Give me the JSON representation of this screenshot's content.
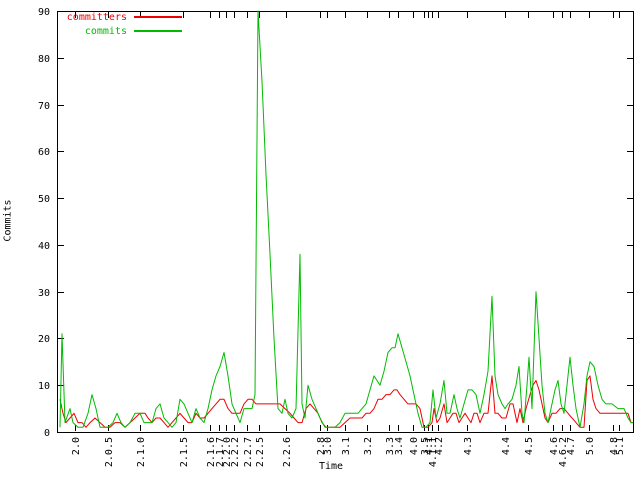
{
  "chart_data": {
    "type": "line",
    "title": "",
    "xlabel": "Time",
    "ylabel": "Commits",
    "ylim": [
      0,
      90
    ],
    "yticks": [
      0,
      10,
      20,
      30,
      40,
      50,
      60,
      70,
      80,
      90
    ],
    "grid": false,
    "x_axis_note": "release versions placed at irregular positions along time axis; x values below are axis pixel positions 57-633",
    "x_ticks": [
      [
        75,
        "2.0"
      ],
      [
        108,
        "2.0.5"
      ],
      [
        140,
        "2.1.0"
      ],
      [
        183,
        "2.1.5"
      ],
      [
        210,
        "2.1.6"
      ],
      [
        219,
        "2.1.7"
      ],
      [
        226,
        "2.2.0"
      ],
      [
        234,
        "2.2.2"
      ],
      [
        247,
        "2.2.7"
      ],
      [
        259,
        "2.2.5"
      ],
      [
        286,
        "2.2.6"
      ],
      [
        320,
        "2.8"
      ],
      [
        327,
        "3.0"
      ],
      [
        345,
        "3.1"
      ],
      [
        367,
        "3.2"
      ],
      [
        389,
        "3.3"
      ],
      [
        398,
        "3.4"
      ],
      [
        413,
        "4.0"
      ],
      [
        424,
        "3.5"
      ],
      [
        428,
        "4.1"
      ],
      [
        432,
        "4.1.1"
      ],
      [
        438,
        "4.2"
      ],
      [
        467,
        "4.3"
      ],
      [
        505,
        "4.4"
      ],
      [
        528,
        "4.5"
      ],
      [
        553,
        "4.6"
      ],
      [
        562,
        "4.6.2"
      ],
      [
        570,
        "4.7"
      ],
      [
        589,
        "5.0"
      ],
      [
        613,
        "4.8"
      ],
      [
        619,
        "5.1"
      ]
    ],
    "legend": {
      "position": "top-left",
      "entries": [
        {
          "label": "committers",
          "color": "#ee0000"
        },
        {
          "label": "commits",
          "color": "#00bb00"
        }
      ]
    },
    "series": [
      {
        "name": "committers",
        "color": "#ee0000",
        "points": [
          [
            60,
            7
          ],
          [
            63,
            4
          ],
          [
            66,
            2
          ],
          [
            70,
            3
          ],
          [
            74,
            4
          ],
          [
            78,
            2
          ],
          [
            82,
            2
          ],
          [
            86,
            1
          ],
          [
            90,
            2
          ],
          [
            95,
            3
          ],
          [
            100,
            2
          ],
          [
            105,
            1
          ],
          [
            110,
            1
          ],
          [
            115,
            2
          ],
          [
            120,
            2
          ],
          [
            125,
            1
          ],
          [
            130,
            2
          ],
          [
            135,
            3
          ],
          [
            140,
            4
          ],
          [
            145,
            4
          ],
          [
            148,
            3
          ],
          [
            152,
            2
          ],
          [
            156,
            3
          ],
          [
            160,
            3
          ],
          [
            164,
            2
          ],
          [
            168,
            1
          ],
          [
            172,
            2
          ],
          [
            176,
            3
          ],
          [
            180,
            4
          ],
          [
            184,
            3
          ],
          [
            188,
            2
          ],
          [
            192,
            2
          ],
          [
            196,
            4
          ],
          [
            200,
            3
          ],
          [
            204,
            3
          ],
          [
            208,
            4
          ],
          [
            212,
            5
          ],
          [
            216,
            6
          ],
          [
            220,
            7
          ],
          [
            224,
            7
          ],
          [
            228,
            5
          ],
          [
            232,
            4
          ],
          [
            236,
            4
          ],
          [
            240,
            4
          ],
          [
            244,
            6
          ],
          [
            248,
            7
          ],
          [
            252,
            7
          ],
          [
            256,
            6
          ],
          [
            260,
            6
          ],
          [
            265,
            6
          ],
          [
            270,
            6
          ],
          [
            275,
            6
          ],
          [
            280,
            6
          ],
          [
            285,
            5
          ],
          [
            290,
            4
          ],
          [
            294,
            3
          ],
          [
            298,
            2
          ],
          [
            302,
            2
          ],
          [
            306,
            5
          ],
          [
            310,
            6
          ],
          [
            314,
            5
          ],
          [
            318,
            4
          ],
          [
            322,
            2
          ],
          [
            326,
            1
          ],
          [
            330,
            1
          ],
          [
            335,
            1
          ],
          [
            340,
            1
          ],
          [
            345,
            2
          ],
          [
            350,
            3
          ],
          [
            355,
            3
          ],
          [
            358,
            3
          ],
          [
            362,
            3
          ],
          [
            366,
            4
          ],
          [
            370,
            4
          ],
          [
            374,
            5
          ],
          [
            378,
            7
          ],
          [
            382,
            7
          ],
          [
            386,
            8
          ],
          [
            390,
            8
          ],
          [
            394,
            9
          ],
          [
            397,
            9
          ],
          [
            400,
            8
          ],
          [
            404,
            7
          ],
          [
            408,
            6
          ],
          [
            412,
            6
          ],
          [
            416,
            6
          ],
          [
            420,
            5
          ],
          [
            424,
            1
          ],
          [
            428,
            1
          ],
          [
            432,
            2
          ],
          [
            434,
            5
          ],
          [
            437,
            2
          ],
          [
            440,
            3
          ],
          [
            444,
            6
          ],
          [
            447,
            2
          ],
          [
            450,
            3
          ],
          [
            453,
            4
          ],
          [
            456,
            4
          ],
          [
            459,
            2
          ],
          [
            462,
            3
          ],
          [
            465,
            4
          ],
          [
            468,
            3
          ],
          [
            471,
            2
          ],
          [
            474,
            4
          ],
          [
            477,
            4
          ],
          [
            480,
            2
          ],
          [
            484,
            4
          ],
          [
            488,
            4
          ],
          [
            492,
            12
          ],
          [
            495,
            4
          ],
          [
            498,
            4
          ],
          [
            502,
            3
          ],
          [
            506,
            3
          ],
          [
            510,
            6
          ],
          [
            513,
            6
          ],
          [
            517,
            2
          ],
          [
            520,
            5
          ],
          [
            523,
            2
          ],
          [
            526,
            5
          ],
          [
            530,
            8
          ],
          [
            533,
            10
          ],
          [
            536,
            11
          ],
          [
            539,
            9
          ],
          [
            542,
            6
          ],
          [
            545,
            3
          ],
          [
            548,
            2
          ],
          [
            552,
            4
          ],
          [
            556,
            4
          ],
          [
            560,
            5
          ],
          [
            564,
            5
          ],
          [
            568,
            4
          ],
          [
            572,
            3
          ],
          [
            576,
            2
          ],
          [
            580,
            1
          ],
          [
            584,
            1
          ],
          [
            587,
            11
          ],
          [
            590,
            12
          ],
          [
            593,
            7
          ],
          [
            596,
            5
          ],
          [
            600,
            4
          ],
          [
            604,
            4
          ],
          [
            608,
            4
          ],
          [
            612,
            4
          ],
          [
            616,
            4
          ],
          [
            620,
            4
          ],
          [
            624,
            4
          ],
          [
            628,
            4
          ],
          [
            631,
            2
          ],
          [
            633,
            2
          ]
        ]
      },
      {
        "name": "commits",
        "color": "#00bb00",
        "points": [
          [
            60,
            1
          ],
          [
            62,
            21
          ],
          [
            65,
            2
          ],
          [
            70,
            5
          ],
          [
            73,
            2
          ],
          [
            78,
            1
          ],
          [
            83,
            1
          ],
          [
            88,
            4
          ],
          [
            92,
            8
          ],
          [
            96,
            5
          ],
          [
            100,
            1
          ],
          [
            104,
            1
          ],
          [
            108,
            1
          ],
          [
            113,
            2
          ],
          [
            117,
            4
          ],
          [
            121,
            2
          ],
          [
            125,
            1
          ],
          [
            130,
            2
          ],
          [
            135,
            4
          ],
          [
            140,
            4
          ],
          [
            144,
            2
          ],
          [
            148,
            2
          ],
          [
            152,
            2
          ],
          [
            156,
            5
          ],
          [
            160,
            6
          ],
          [
            164,
            3
          ],
          [
            168,
            2
          ],
          [
            172,
            1
          ],
          [
            176,
            2
          ],
          [
            180,
            7
          ],
          [
            184,
            6
          ],
          [
            188,
            4
          ],
          [
            192,
            2
          ],
          [
            196,
            5
          ],
          [
            200,
            3
          ],
          [
            204,
            2
          ],
          [
            208,
            5
          ],
          [
            212,
            9
          ],
          [
            216,
            12
          ],
          [
            220,
            14
          ],
          [
            224,
            17
          ],
          [
            228,
            12
          ],
          [
            232,
            6
          ],
          [
            236,
            4
          ],
          [
            240,
            2
          ],
          [
            244,
            5
          ],
          [
            248,
            5
          ],
          [
            252,
            5
          ],
          [
            255,
            8
          ],
          [
            258,
            90
          ],
          [
            262,
            75
          ],
          [
            266,
            55
          ],
          [
            270,
            38
          ],
          [
            274,
            20
          ],
          [
            278,
            5
          ],
          [
            282,
            4
          ],
          [
            285,
            7
          ],
          [
            288,
            4
          ],
          [
            292,
            3
          ],
          [
            296,
            5
          ],
          [
            300,
            38
          ],
          [
            302,
            6
          ],
          [
            305,
            3
          ],
          [
            308,
            10
          ],
          [
            312,
            7
          ],
          [
            316,
            5
          ],
          [
            320,
            3
          ],
          [
            325,
            1
          ],
          [
            330,
            1
          ],
          [
            335,
            1
          ],
          [
            340,
            2
          ],
          [
            345,
            4
          ],
          [
            350,
            4
          ],
          [
            355,
            4
          ],
          [
            358,
            4
          ],
          [
            362,
            5
          ],
          [
            366,
            6
          ],
          [
            370,
            9
          ],
          [
            374,
            12
          ],
          [
            377,
            11
          ],
          [
            380,
            10
          ],
          [
            384,
            13
          ],
          [
            388,
            17
          ],
          [
            392,
            18
          ],
          [
            395,
            18
          ],
          [
            398,
            21
          ],
          [
            402,
            18
          ],
          [
            406,
            15
          ],
          [
            410,
            12
          ],
          [
            414,
            8
          ],
          [
            418,
            4
          ],
          [
            422,
            1
          ],
          [
            426,
            1
          ],
          [
            430,
            2
          ],
          [
            433,
            9
          ],
          [
            436,
            3
          ],
          [
            440,
            6
          ],
          [
            444,
            11
          ],
          [
            447,
            4
          ],
          [
            450,
            4
          ],
          [
            454,
            8
          ],
          [
            457,
            5
          ],
          [
            460,
            3
          ],
          [
            464,
            6
          ],
          [
            468,
            9
          ],
          [
            472,
            9
          ],
          [
            476,
            8
          ],
          [
            480,
            4
          ],
          [
            484,
            8
          ],
          [
            488,
            13
          ],
          [
            492,
            29
          ],
          [
            495,
            12
          ],
          [
            498,
            8
          ],
          [
            502,
            6
          ],
          [
            505,
            5
          ],
          [
            508,
            6
          ],
          [
            512,
            7
          ],
          [
            516,
            10
          ],
          [
            519,
            14
          ],
          [
            522,
            4
          ],
          [
            524,
            2
          ],
          [
            527,
            10
          ],
          [
            529,
            16
          ],
          [
            532,
            5
          ],
          [
            536,
            30
          ],
          [
            539,
            20
          ],
          [
            542,
            10
          ],
          [
            545,
            4
          ],
          [
            548,
            2
          ],
          [
            552,
            6
          ],
          [
            555,
            9
          ],
          [
            558,
            11
          ],
          [
            561,
            6
          ],
          [
            564,
            4
          ],
          [
            567,
            10
          ],
          [
            570,
            16
          ],
          [
            573,
            10
          ],
          [
            576,
            5
          ],
          [
            580,
            1
          ],
          [
            584,
            6
          ],
          [
            587,
            12
          ],
          [
            590,
            15
          ],
          [
            594,
            14
          ],
          [
            598,
            10
          ],
          [
            602,
            7
          ],
          [
            606,
            6
          ],
          [
            612,
            6
          ],
          [
            618,
            5
          ],
          [
            624,
            5
          ],
          [
            628,
            3
          ],
          [
            631,
            2
          ],
          [
            633,
            2
          ]
        ]
      }
    ]
  }
}
